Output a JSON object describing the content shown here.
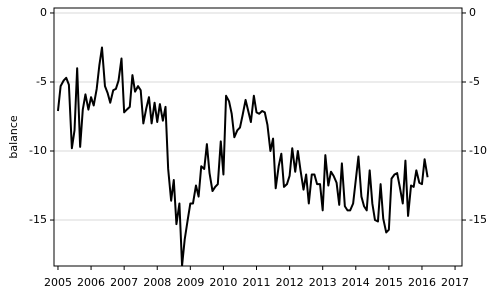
{
  "chart_data": {
    "type": "line",
    "y_label": "balance",
    "color": "#000000",
    "grid": true,
    "x": [
      2005.0,
      2005.08,
      2005.17,
      2005.25,
      2005.33,
      2005.42,
      2005.5,
      2005.58,
      2005.67,
      2005.75,
      2005.83,
      2005.92,
      2006.0,
      2006.08,
      2006.17,
      2006.25,
      2006.33,
      2006.42,
      2006.5,
      2006.58,
      2006.67,
      2006.75,
      2006.83,
      2006.92,
      2007.0,
      2007.08,
      2007.17,
      2007.25,
      2007.33,
      2007.42,
      2007.5,
      2007.58,
      2007.67,
      2007.75,
      2007.83,
      2007.92,
      2008.0,
      2008.08,
      2008.17,
      2008.25,
      2008.33,
      2008.42,
      2008.5,
      2008.58,
      2008.67,
      2008.75,
      2008.83,
      2008.92,
      2009.0,
      2009.08,
      2009.17,
      2009.25,
      2009.33,
      2009.42,
      2009.5,
      2009.58,
      2009.67,
      2009.75,
      2009.83,
      2009.92,
      2010.0,
      2010.08,
      2010.17,
      2010.25,
      2010.33,
      2010.42,
      2010.5,
      2010.58,
      2010.67,
      2010.75,
      2010.83,
      2010.92,
      2011.0,
      2011.08,
      2011.17,
      2011.25,
      2011.33,
      2011.42,
      2011.5,
      2011.58,
      2011.67,
      2011.75,
      2011.83,
      2011.92,
      2012.0,
      2012.08,
      2012.17,
      2012.25,
      2012.33,
      2012.42,
      2012.5,
      2012.58,
      2012.67,
      2012.75,
      2012.83,
      2012.92,
      2013.0,
      2013.08,
      2013.17,
      2013.25,
      2013.33,
      2013.42,
      2013.5,
      2013.58,
      2013.67,
      2013.75,
      2013.83,
      2013.92,
      2014.0,
      2014.08,
      2014.17,
      2014.25,
      2014.33,
      2014.42,
      2014.5,
      2014.58,
      2014.67,
      2014.75,
      2014.83,
      2014.92,
      2015.0,
      2015.08,
      2015.17,
      2015.25,
      2015.33,
      2015.42,
      2015.5,
      2015.58,
      2015.67,
      2015.75,
      2015.83,
      2015.92,
      2016.0,
      2016.08,
      2016.17
    ],
    "values": [
      -7.1,
      -5.3,
      -4.9,
      -4.7,
      -5.2,
      -9.8,
      -8.5,
      -4.0,
      -9.7,
      -7.0,
      -5.9,
      -7.0,
      -6.1,
      -6.7,
      -5.5,
      -3.8,
      -2.5,
      -5.3,
      -5.8,
      -6.5,
      -5.6,
      -5.5,
      -4.9,
      -3.3,
      -7.2,
      -7.0,
      -6.8,
      -4.5,
      -5.7,
      -5.3,
      -5.6,
      -8.0,
      -6.9,
      -6.1,
      -8.0,
      -6.5,
      -7.9,
      -6.6,
      -7.8,
      -6.8,
      -11.3,
      -13.6,
      -12.1,
      -15.3,
      -13.8,
      -18.3,
      -16.4,
      -15.0,
      -13.8,
      -13.8,
      -12.5,
      -13.3,
      -11.1,
      -11.3,
      -9.5,
      -11.6,
      -12.9,
      -12.6,
      -12.4,
      -9.3,
      -11.7,
      -6.0,
      -6.4,
      -7.3,
      -9.0,
      -8.5,
      -8.3,
      -7.4,
      -6.3,
      -7.1,
      -7.9,
      -6.0,
      -7.2,
      -7.3,
      -7.1,
      -7.2,
      -8.1,
      -10.0,
      -9.1,
      -12.7,
      -11.1,
      -10.2,
      -12.6,
      -12.4,
      -11.8,
      -9.8,
      -11.5,
      -10.0,
      -11.4,
      -12.8,
      -11.7,
      -13.8,
      -11.7,
      -11.7,
      -12.4,
      -12.4,
      -14.3,
      -10.3,
      -12.5,
      -11.5,
      -11.8,
      -12.3,
      -13.9,
      -10.9,
      -14.0,
      -14.3,
      -14.3,
      -13.8,
      -12.1,
      -10.4,
      -13.3,
      -14.0,
      -14.3,
      -11.4,
      -13.8,
      -15.0,
      -15.1,
      -12.4,
      -14.9,
      -15.9,
      -15.7,
      -12.0,
      -11.7,
      -11.6,
      -12.6,
      -13.8,
      -10.7,
      -14.7,
      -12.5,
      -12.6,
      -11.4,
      -12.3,
      -12.4,
      -10.6,
      -11.9
    ],
    "xlim": [
      2004.88,
      2017.21
    ],
    "xticks": [
      2005,
      2006,
      2007,
      2008,
      2009,
      2010,
      2011,
      2012,
      2013,
      2014,
      2015,
      2016,
      2017
    ],
    "ylim": [
      -18.33,
      0.36
    ],
    "yticks": [
      0,
      -5,
      -10,
      -15
    ]
  }
}
